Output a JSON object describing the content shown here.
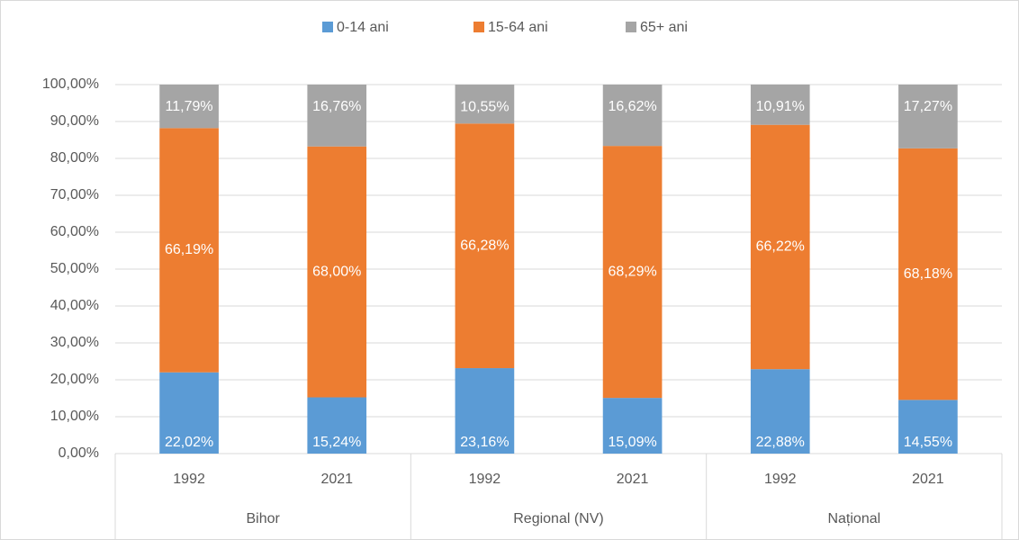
{
  "chart_data": {
    "type": "stacked_bar",
    "categories": [
      "1992",
      "2021",
      "1992",
      "2021",
      "1992",
      "2021"
    ],
    "groups": [
      "Bihor",
      "Regional (NV)",
      "Național"
    ],
    "series": [
      {
        "name": "0-14 ani",
        "color": "#5b9bd5",
        "values": [
          22.02,
          15.24,
          23.16,
          15.09,
          22.88,
          14.55
        ],
        "value_labels": [
          "22,02%",
          "15,24%",
          "23,16%",
          "15,09%",
          "22,88%",
          "14,55%"
        ]
      },
      {
        "name": "15-64 ani",
        "color": "#ed7d31",
        "values": [
          66.19,
          68.0,
          66.28,
          68.29,
          66.22,
          68.18
        ],
        "value_labels": [
          "66,19%",
          "68,00%",
          "66,28%",
          "68,29%",
          "66,22%",
          "68,18%"
        ]
      },
      {
        "name": "65+ ani",
        "color": "#a5a5a5",
        "values": [
          11.79,
          16.76,
          10.55,
          16.62,
          10.91,
          17.27
        ],
        "value_labels": [
          "11,79%",
          "16,76%",
          "10,55%",
          "16,62%",
          "10,91%",
          "17,27%"
        ]
      }
    ],
    "ylim": [
      0,
      100
    ],
    "yticks": [
      {
        "value": 0,
        "label": "0,00%"
      },
      {
        "value": 10,
        "label": "10,00%"
      },
      {
        "value": 20,
        "label": "20,00%"
      },
      {
        "value": 30,
        "label": "30,00%"
      },
      {
        "value": 40,
        "label": "40,00%"
      },
      {
        "value": 50,
        "label": "50,00%"
      },
      {
        "value": 60,
        "label": "60,00%"
      },
      {
        "value": 70,
        "label": "70,00%"
      },
      {
        "value": 80,
        "label": "80,00%"
      },
      {
        "value": 90,
        "label": "90,00%"
      },
      {
        "value": 100,
        "label": "100,00%"
      }
    ],
    "grid": true,
    "legend": "top"
  }
}
